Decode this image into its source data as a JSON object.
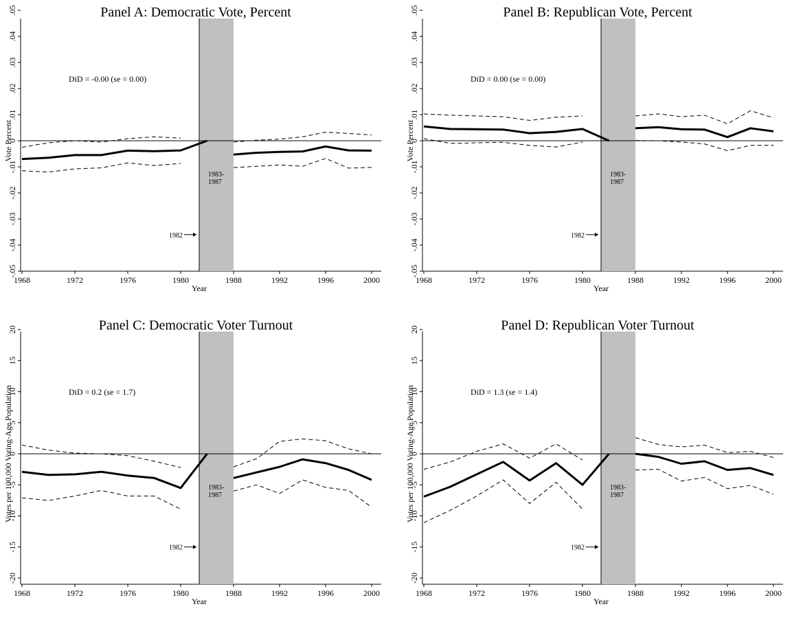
{
  "colors": {
    "shade": "#c0c0c0",
    "line": "#000000"
  },
  "chart_data": [
    {
      "type": "line",
      "title": "Panel A: Democratic Vote, Percent",
      "xlabel": "Year",
      "ylabel": "Vote Percent",
      "ylim": [
        -0.05,
        0.05
      ],
      "yticks": [
        ".05",
        ".04",
        ".03",
        ".02",
        ".01",
        "0",
        "-.01",
        "-.02",
        "-.03",
        "-.04",
        "-.05"
      ],
      "ytick_values": [
        0.05,
        0.04,
        0.03,
        0.02,
        0.01,
        0,
        -0.01,
        -0.02,
        -0.03,
        -0.04,
        -0.05
      ],
      "xticks": [
        "1968",
        "1972",
        "1976",
        "1980",
        "1988",
        "1992",
        "1996",
        "2000"
      ],
      "annotation": "DiD = -0.00 (se = 0.00)",
      "shaded_period_label": "1983-\n1987",
      "arrow_label": "1982",
      "arrow_value": -0.036,
      "series": [
        {
          "style": "solid",
          "segments": [
            {
              "x": [
                1968,
                1970,
                1972,
                1974,
                1976,
                1978,
                1980,
                1982
              ],
              "y": [
                -0.007,
                -0.0065,
                -0.0055,
                -0.0055,
                -0.0038,
                -0.004,
                -0.0037,
                0
              ]
            },
            {
              "x": [
                1988,
                1990,
                1992,
                1994,
                1996,
                1998,
                2000
              ],
              "y": [
                -0.0053,
                -0.0046,
                -0.0043,
                -0.0041,
                -0.0022,
                -0.0037,
                -0.0038
              ]
            }
          ]
        },
        {
          "style": "dashed",
          "segments": [
            {
              "x": [
                1968,
                1970,
                1972,
                1974,
                1976,
                1978,
                1980
              ],
              "y": [
                -0.0025,
                -0.0008,
                0.0,
                -0.0005,
                0.0008,
                0.0015,
                0.001
              ]
            },
            {
              "x": [
                1988,
                1990,
                1992,
                1994,
                1996,
                1998,
                2000
              ],
              "y": [
                -0.0005,
                0.0002,
                0.0006,
                0.0015,
                0.0033,
                0.0028,
                0.0022
              ]
            }
          ]
        },
        {
          "style": "dashed",
          "segments": [
            {
              "x": [
                1968,
                1970,
                1972,
                1974,
                1976,
                1978,
                1980
              ],
              "y": [
                -0.0115,
                -0.012,
                -0.0108,
                -0.0104,
                -0.0085,
                -0.0095,
                -0.0087
              ]
            },
            {
              "x": [
                1988,
                1990,
                1992,
                1994,
                1996,
                1998,
                2000
              ],
              "y": [
                -0.0103,
                -0.0098,
                -0.0093,
                -0.0098,
                -0.0068,
                -0.0105,
                -0.0102
              ]
            }
          ]
        }
      ]
    },
    {
      "type": "line",
      "title": "Panel B: Republican Vote, Percent",
      "xlabel": "Year",
      "ylabel": "Vote Percent",
      "ylim": [
        -0.05,
        0.05
      ],
      "yticks": [
        ".05",
        ".04",
        ".03",
        ".02",
        ".01",
        "0",
        "-.01",
        "-.02",
        "-.03",
        "-.04",
        "-.05"
      ],
      "ytick_values": [
        0.05,
        0.04,
        0.03,
        0.02,
        0.01,
        0,
        -0.01,
        -0.02,
        -0.03,
        -0.04,
        -0.05
      ],
      "xticks": [
        "1968",
        "1972",
        "1976",
        "1980",
        "1988",
        "1992",
        "1996",
        "2000"
      ],
      "annotation": "DiD = 0.00 (se = 0.00)",
      "shaded_period_label": "1983-\n1987",
      "arrow_label": "1982",
      "arrow_value": -0.036,
      "series": [
        {
          "style": "solid",
          "segments": [
            {
              "x": [
                1968,
                1970,
                1972,
                1974,
                1976,
                1978,
                1980,
                1982
              ],
              "y": [
                0.0055,
                0.0045,
                0.0044,
                0.0043,
                0.0029,
                0.0034,
                0.0045,
                0
              ]
            },
            {
              "x": [
                1988,
                1990,
                1992,
                1994,
                1996,
                1998,
                2000
              ],
              "y": [
                0.0048,
                0.0052,
                0.0044,
                0.0043,
                0.0014,
                0.0048,
                0.0036
              ]
            }
          ]
        },
        {
          "style": "dashed",
          "segments": [
            {
              "x": [
                1968,
                1970,
                1972,
                1974,
                1976,
                1978,
                1980
              ],
              "y": [
                0.0103,
                0.0098,
                0.0095,
                0.0092,
                0.0078,
                0.009,
                0.0095
              ]
            },
            {
              "x": [
                1988,
                1990,
                1992,
                1994,
                1996,
                1998,
                2000
              ],
              "y": [
                0.0095,
                0.0103,
                0.0092,
                0.0098,
                0.0065,
                0.0115,
                0.0088
              ]
            }
          ]
        },
        {
          "style": "dashed",
          "segments": [
            {
              "x": [
                1968,
                1970,
                1972,
                1974,
                1976,
                1978,
                1980
              ],
              "y": [
                0.0008,
                -0.001,
                -0.0008,
                -0.0006,
                -0.0018,
                -0.0024,
                -0.0005
              ]
            },
            {
              "x": [
                1988,
                1990,
                1992,
                1994,
                1996,
                1998,
                2000
              ],
              "y": [
                0.0001,
                0.0,
                -0.0005,
                -0.0012,
                -0.0038,
                -0.0018,
                -0.0017
              ]
            }
          ]
        }
      ]
    },
    {
      "type": "line",
      "title": "Panel C: Democratic Voter Turnout",
      "xlabel": "Year",
      "ylabel": "Votes per 100,000 Voting-Age Population",
      "ylim": [
        -21,
        21
      ],
      "yticks": [
        "20",
        "15",
        "10",
        "5",
        "0",
        "-5",
        "-10",
        "-15",
        "-20"
      ],
      "ytick_values": [
        20,
        15,
        10,
        5,
        0,
        -5,
        -10,
        -15,
        -20
      ],
      "xticks": [
        "1968",
        "1972",
        "1976",
        "1980",
        "1988",
        "1992",
        "1996",
        "2000"
      ],
      "annotation": "DiD = 0.2 (se = 1.7)",
      "shaded_period_label": "1983-\n1987",
      "arrow_label": "1982",
      "arrow_value": -15,
      "series": [
        {
          "style": "solid",
          "segments": [
            {
              "x": [
                1968,
                1970,
                1972,
                1974,
                1976,
                1978,
                1980,
                1982
              ],
              "y": [
                -2.9,
                -3.4,
                -3.3,
                -2.9,
                -3.5,
                -3.9,
                -5.5,
                0
              ]
            },
            {
              "x": [
                1988,
                1990,
                1992,
                1994,
                1996,
                1998,
                2000
              ],
              "y": [
                -3.9,
                -3.0,
                -2.1,
                -0.9,
                -1.5,
                -2.6,
                -4.2
              ]
            }
          ]
        },
        {
          "style": "dashed",
          "segments": [
            {
              "x": [
                1968,
                1970,
                1972,
                1974,
                1976,
                1978,
                1980
              ],
              "y": [
                1.4,
                0.6,
                0.1,
                0.0,
                -0.3,
                -1.2,
                -2.2
              ]
            },
            {
              "x": [
                1988,
                1990,
                1992,
                1994,
                1996,
                1998,
                2000
              ],
              "y": [
                -2.1,
                -0.8,
                2.0,
                2.4,
                2.1,
                0.8,
                0.0
              ]
            }
          ]
        },
        {
          "style": "dashed",
          "segments": [
            {
              "x": [
                1968,
                1970,
                1972,
                1974,
                1976,
                1978,
                1980
              ],
              "y": [
                -7.1,
                -7.5,
                -6.8,
                -5.9,
                -6.8,
                -6.8,
                -8.9
              ]
            },
            {
              "x": [
                1988,
                1990,
                1992,
                1994,
                1996,
                1998,
                2000
              ],
              "y": [
                -6.0,
                -5.0,
                -6.4,
                -4.2,
                -5.4,
                -5.9,
                -8.6
              ]
            }
          ]
        }
      ]
    },
    {
      "type": "line",
      "title": "Panel D: Republican Voter Turnout",
      "xlabel": "Year",
      "ylabel": "Votes per 100,000 Voting-Age Population",
      "ylim": [
        -21,
        21
      ],
      "yticks": [
        "20",
        "15",
        "10",
        "5",
        "0",
        "-5",
        "-10",
        "-15",
        "-20"
      ],
      "ytick_values": [
        20,
        15,
        10,
        5,
        0,
        -5,
        -10,
        -15,
        -20
      ],
      "xticks": [
        "1968",
        "1972",
        "1976",
        "1980",
        "1988",
        "1992",
        "1996",
        "2000"
      ],
      "annotation": "DiD = 1.3 (se = 1.4)",
      "shaded_period_label": "1983-\n1987",
      "arrow_label": "1982",
      "arrow_value": -15,
      "series": [
        {
          "style": "solid",
          "segments": [
            {
              "x": [
                1968,
                1970,
                1972,
                1974,
                1976,
                1978,
                1980,
                1982
              ],
              "y": [
                -6.9,
                -5.3,
                -3.3,
                -1.3,
                -4.3,
                -1.5,
                -5.0,
                0
              ]
            },
            {
              "x": [
                1988,
                1990,
                1992,
                1994,
                1996,
                1998,
                2000
              ],
              "y": [
                0.0,
                -0.5,
                -1.6,
                -1.2,
                -2.6,
                -2.3,
                -3.4
              ]
            }
          ]
        },
        {
          "style": "dashed",
          "segments": [
            {
              "x": [
                1968,
                1970,
                1972,
                1974,
                1976,
                1978,
                1980
              ],
              "y": [
                -2.5,
                -1.3,
                0.4,
                1.6,
                -0.7,
                1.6,
                -1.0
              ]
            },
            {
              "x": [
                1988,
                1990,
                1992,
                1994,
                1996,
                1998,
                2000
              ],
              "y": [
                2.6,
                1.5,
                1.1,
                1.4,
                0.2,
                0.4,
                -0.6
              ]
            }
          ]
        },
        {
          "style": "dashed",
          "segments": [
            {
              "x": [
                1968,
                1970,
                1972,
                1974,
                1976,
                1978,
                1980
              ],
              "y": [
                -11.1,
                -9.1,
                -6.8,
                -4.2,
                -8.0,
                -4.6,
                -8.9
              ]
            },
            {
              "x": [
                1988,
                1990,
                1992,
                1994,
                1996,
                1998,
                2000
              ],
              "y": [
                -2.6,
                -2.5,
                -4.4,
                -3.8,
                -5.6,
                -5.1,
                -6.5
              ]
            }
          ]
        }
      ]
    }
  ]
}
